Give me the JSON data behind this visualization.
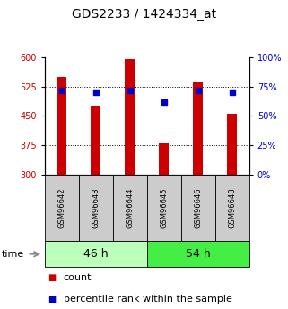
{
  "title": "GDS2233 / 1424334_at",
  "samples": [
    "GSM96642",
    "GSM96643",
    "GSM96644",
    "GSM96645",
    "GSM96646",
    "GSM96648"
  ],
  "counts": [
    550,
    475,
    595,
    380,
    535,
    455
  ],
  "percentiles": [
    72,
    70,
    72,
    62,
    72,
    70
  ],
  "groups": [
    {
      "label": "46 h",
      "indices": [
        0,
        1,
        2
      ],
      "color": "#bbffbb"
    },
    {
      "label": "54 h",
      "indices": [
        3,
        4,
        5
      ],
      "color": "#44ee44"
    }
  ],
  "ylim_left": [
    300,
    600
  ],
  "ylim_right": [
    0,
    100
  ],
  "yticks_left": [
    300,
    375,
    450,
    525,
    600
  ],
  "yticks_right": [
    0,
    25,
    50,
    75,
    100
  ],
  "bar_color": "#cc0000",
  "dot_color": "#0000cc",
  "label_bg": "#cccccc",
  "title_fontsize": 10,
  "tick_fontsize": 7,
  "sample_fontsize": 6,
  "group_fontsize": 9,
  "legend_fontsize": 8,
  "time_label": "time",
  "legend_items": [
    {
      "label": "count",
      "color": "#cc0000"
    },
    {
      "label": "percentile rank within the sample",
      "color": "#0000cc"
    }
  ]
}
